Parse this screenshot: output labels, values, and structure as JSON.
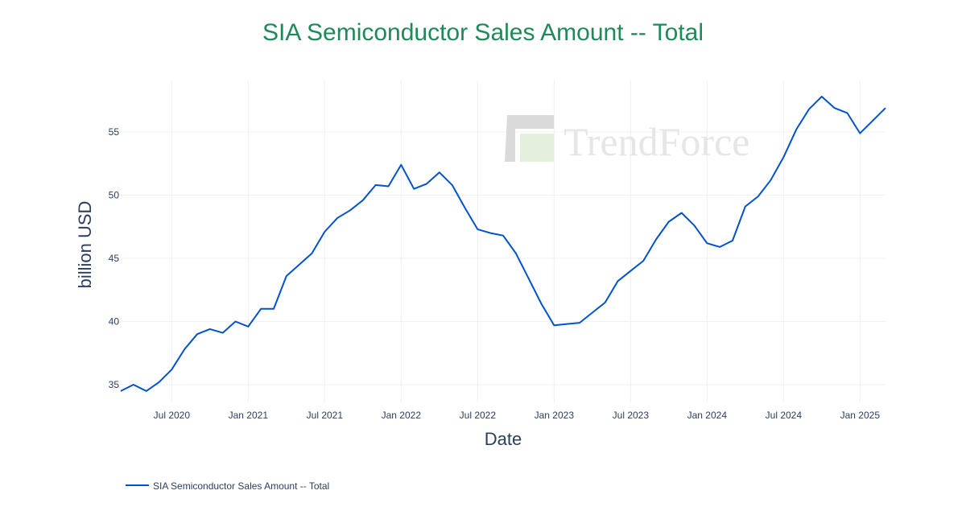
{
  "chart_data": {
    "type": "line",
    "title": "SIA Semiconductor Sales Amount -- Total",
    "xlabel": "Date",
    "ylabel": "billion USD",
    "x_ticks": [
      "Jul 2020",
      "Jan 2021",
      "Jul 2021",
      "Jan 2022",
      "Jul 2022",
      "Jan 2023",
      "Jul 2023",
      "Jan 2024",
      "Jul 2024",
      "Jan 2025"
    ],
    "y_ticks": [
      35,
      40,
      45,
      50,
      55
    ],
    "ylim": [
      33.5,
      59.3
    ],
    "x_range_months": [
      0,
      60
    ],
    "grid": true,
    "legend_position": "bottom-left",
    "x_start": "Mar 2020",
    "series": [
      {
        "name": "SIA Semiconductor Sales Amount -- Total",
        "color": "#0052cc",
        "months_since_start": [
          0,
          1,
          2,
          3,
          4,
          5,
          6,
          7,
          8,
          9,
          10,
          11,
          12,
          13,
          14,
          15,
          16,
          17,
          18,
          19,
          20,
          21,
          22,
          23,
          24,
          25,
          26,
          27,
          28,
          29,
          30,
          31,
          32,
          33,
          34,
          35,
          36,
          37,
          38,
          39,
          40,
          41,
          42,
          43,
          44,
          45,
          46,
          47,
          48,
          49,
          50,
          51,
          52,
          53,
          54,
          55,
          56,
          57,
          58,
          59,
          60
        ],
        "values": [
          34.5,
          35.0,
          34.5,
          35.2,
          36.2,
          37.8,
          39.0,
          39.4,
          39.1,
          40.0,
          39.6,
          41.0,
          41.0,
          43.6,
          44.5,
          45.4,
          47.1,
          48.2,
          48.8,
          49.6,
          50.8,
          50.7,
          52.4,
          50.5,
          50.9,
          51.8,
          50.8,
          49.0,
          47.3,
          47.0,
          46.8,
          45.4,
          43.4,
          41.4,
          39.7,
          39.8,
          39.9,
          40.7,
          41.5,
          43.2,
          44.0,
          44.8,
          46.5,
          47.9,
          48.6,
          47.6,
          46.2,
          45.9,
          46.4,
          49.1,
          49.9,
          51.2,
          53.0,
          55.2,
          56.8,
          57.8,
          56.9,
          56.5,
          54.9,
          55.9,
          56.9
        ]
      }
    ]
  },
  "watermark": {
    "text": "TrendForce",
    "colors": {
      "dark": "#dadada",
      "light": "#e2f0dc"
    }
  },
  "colors": {
    "title": "#1e8a57",
    "grid": "#f0f0f0",
    "text": "#2a3f5f"
  }
}
